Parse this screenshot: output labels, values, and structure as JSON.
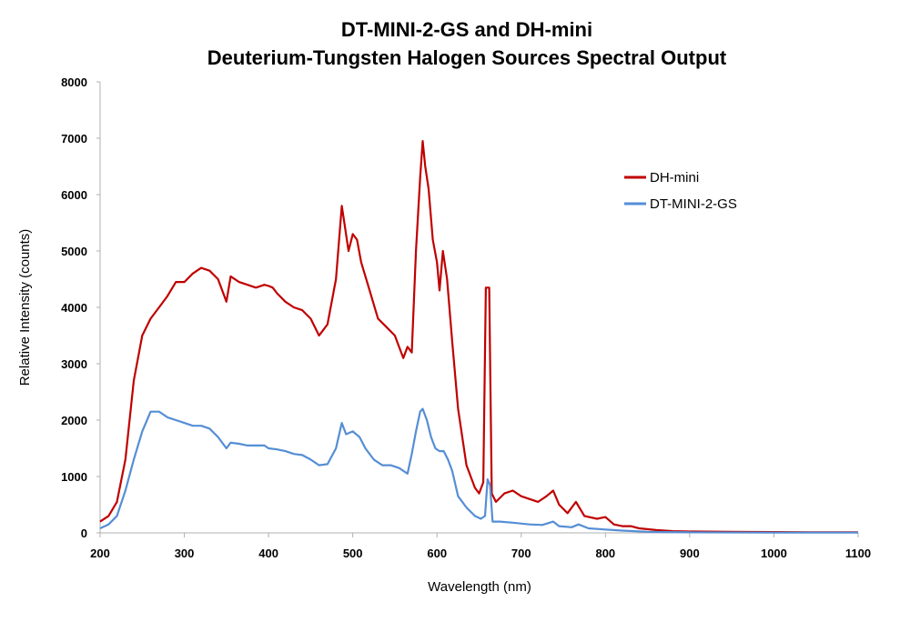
{
  "chart_data": {
    "type": "line",
    "title": [
      "DT-MINI-2-GS and DH-mini",
      "Deuterium-Tungsten Halogen Sources Spectral Output"
    ],
    "xlabel": "Wavelength (nm)",
    "ylabel": "Relative Intensity (counts)",
    "xlim": [
      200,
      1100
    ],
    "ylim": [
      0,
      8000
    ],
    "xticks": [
      200,
      300,
      400,
      500,
      600,
      700,
      800,
      900,
      1000,
      1100
    ],
    "yticks": [
      0,
      1000,
      2000,
      3000,
      4000,
      5000,
      6000,
      7000,
      8000
    ],
    "grid": false,
    "legend_position": "right",
    "series": [
      {
        "name": "DH-mini",
        "color": "#c00000",
        "points": [
          [
            200,
            200
          ],
          [
            210,
            300
          ],
          [
            220,
            550
          ],
          [
            230,
            1300
          ],
          [
            240,
            2700
          ],
          [
            250,
            3500
          ],
          [
            260,
            3800
          ],
          [
            270,
            4000
          ],
          [
            280,
            4200
          ],
          [
            290,
            4450
          ],
          [
            300,
            4450
          ],
          [
            310,
            4600
          ],
          [
            320,
            4700
          ],
          [
            330,
            4650
          ],
          [
            340,
            4500
          ],
          [
            350,
            4100
          ],
          [
            355,
            4550
          ],
          [
            365,
            4450
          ],
          [
            375,
            4400
          ],
          [
            385,
            4350
          ],
          [
            395,
            4400
          ],
          [
            400,
            4380
          ],
          [
            405,
            4350
          ],
          [
            410,
            4250
          ],
          [
            420,
            4100
          ],
          [
            430,
            4000
          ],
          [
            440,
            3950
          ],
          [
            450,
            3800
          ],
          [
            460,
            3500
          ],
          [
            465,
            3600
          ],
          [
            470,
            3700
          ],
          [
            480,
            4500
          ],
          [
            487,
            5800
          ],
          [
            490,
            5500
          ],
          [
            495,
            5000
          ],
          [
            500,
            5300
          ],
          [
            505,
            5200
          ],
          [
            510,
            4800
          ],
          [
            520,
            4300
          ],
          [
            530,
            3800
          ],
          [
            540,
            3650
          ],
          [
            550,
            3500
          ],
          [
            560,
            3100
          ],
          [
            565,
            3300
          ],
          [
            570,
            3200
          ],
          [
            575,
            5000
          ],
          [
            580,
            6300
          ],
          [
            583,
            6950
          ],
          [
            586,
            6500
          ],
          [
            590,
            6100
          ],
          [
            595,
            5200
          ],
          [
            600,
            4800
          ],
          [
            603,
            4300
          ],
          [
            607,
            5000
          ],
          [
            612,
            4500
          ],
          [
            618,
            3400
          ],
          [
            625,
            2200
          ],
          [
            635,
            1200
          ],
          [
            645,
            800
          ],
          [
            650,
            700
          ],
          [
            655,
            900
          ],
          [
            658,
            4350
          ],
          [
            662,
            4350
          ],
          [
            665,
            700
          ],
          [
            670,
            550
          ],
          [
            680,
            700
          ],
          [
            690,
            750
          ],
          [
            700,
            650
          ],
          [
            710,
            600
          ],
          [
            720,
            550
          ],
          [
            730,
            650
          ],
          [
            738,
            750
          ],
          [
            745,
            500
          ],
          [
            755,
            350
          ],
          [
            765,
            550
          ],
          [
            775,
            300
          ],
          [
            790,
            250
          ],
          [
            800,
            280
          ],
          [
            810,
            150
          ],
          [
            820,
            120
          ],
          [
            830,
            120
          ],
          [
            840,
            80
          ],
          [
            860,
            50
          ],
          [
            880,
            30
          ],
          [
            900,
            25
          ],
          [
            950,
            20
          ],
          [
            1000,
            15
          ],
          [
            1050,
            10
          ],
          [
            1100,
            10
          ]
        ]
      },
      {
        "name": "DT-MINI-2-GS",
        "color": "#558ed5",
        "points": [
          [
            200,
            80
          ],
          [
            210,
            150
          ],
          [
            220,
            300
          ],
          [
            230,
            750
          ],
          [
            240,
            1300
          ],
          [
            250,
            1800
          ],
          [
            260,
            2150
          ],
          [
            270,
            2150
          ],
          [
            280,
            2050
          ],
          [
            290,
            2000
          ],
          [
            300,
            1950
          ],
          [
            310,
            1900
          ],
          [
            320,
            1900
          ],
          [
            330,
            1850
          ],
          [
            340,
            1700
          ],
          [
            350,
            1500
          ],
          [
            355,
            1600
          ],
          [
            365,
            1580
          ],
          [
            375,
            1550
          ],
          [
            385,
            1550
          ],
          [
            395,
            1550
          ],
          [
            400,
            1500
          ],
          [
            410,
            1480
          ],
          [
            420,
            1450
          ],
          [
            430,
            1400
          ],
          [
            440,
            1380
          ],
          [
            450,
            1300
          ],
          [
            460,
            1200
          ],
          [
            470,
            1220
          ],
          [
            480,
            1500
          ],
          [
            487,
            1950
          ],
          [
            492,
            1750
          ],
          [
            500,
            1800
          ],
          [
            508,
            1700
          ],
          [
            515,
            1500
          ],
          [
            525,
            1300
          ],
          [
            535,
            1200
          ],
          [
            545,
            1200
          ],
          [
            555,
            1150
          ],
          [
            565,
            1050
          ],
          [
            570,
            1400
          ],
          [
            575,
            1800
          ],
          [
            580,
            2150
          ],
          [
            583,
            2200
          ],
          [
            588,
            2000
          ],
          [
            593,
            1700
          ],
          [
            598,
            1500
          ],
          [
            603,
            1450
          ],
          [
            608,
            1450
          ],
          [
            613,
            1300
          ],
          [
            618,
            1100
          ],
          [
            625,
            650
          ],
          [
            635,
            450
          ],
          [
            645,
            300
          ],
          [
            652,
            250
          ],
          [
            657,
            300
          ],
          [
            660,
            950
          ],
          [
            663,
            850
          ],
          [
            666,
            200
          ],
          [
            675,
            200
          ],
          [
            690,
            180
          ],
          [
            710,
            150
          ],
          [
            725,
            140
          ],
          [
            738,
            200
          ],
          [
            745,
            120
          ],
          [
            760,
            100
          ],
          [
            768,
            150
          ],
          [
            780,
            80
          ],
          [
            800,
            60
          ],
          [
            820,
            40
          ],
          [
            850,
            20
          ],
          [
            900,
            10
          ],
          [
            1000,
            5
          ],
          [
            1100,
            5
          ]
        ]
      }
    ]
  }
}
